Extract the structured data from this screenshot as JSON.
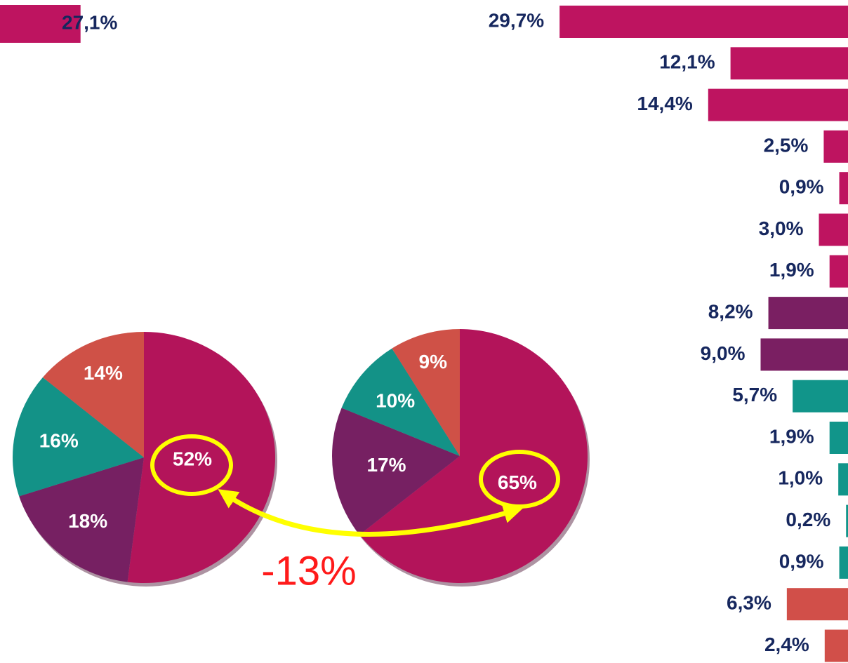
{
  "chart_data": [
    {
      "type": "bar",
      "orientation": "horizontal",
      "values": [
        27.1
      ],
      "value_labels": [
        "27,1%"
      ],
      "color": "#be1460",
      "xlim": [
        0,
        30
      ]
    },
    {
      "type": "bar",
      "orientation": "horizontal",
      "values": [
        29.7,
        12.1,
        14.4,
        2.5,
        0.9,
        3.0,
        1.9,
        8.2,
        9.0,
        5.7,
        1.9,
        1.0,
        0.2,
        0.9,
        6.3,
        2.4
      ],
      "value_labels": [
        "29,7%",
        "12,1%",
        "14,4%",
        "2,5%",
        "0,9%",
        "3,0%",
        "1,9%",
        "8,2%",
        "9,0%",
        "5,7%",
        "1,9%",
        "1,0%",
        "0,2%",
        "0,9%",
        "6,3%",
        "2,4%"
      ],
      "colors": [
        "#be1460",
        "#be1460",
        "#be1460",
        "#be1460",
        "#be1460",
        "#be1460",
        "#be1460",
        "#7a1f62",
        "#7a1f62",
        "#11958a",
        "#11958a",
        "#11958a",
        "#11958a",
        "#11958a",
        "#d14f49",
        "#d14f49"
      ],
      "xlim": [
        0,
        30
      ]
    },
    {
      "type": "pie",
      "values": [
        52,
        18,
        16,
        14
      ],
      "value_labels": [
        "52%",
        "18%",
        "16%",
        "14%"
      ],
      "colors": [
        "#b3145a",
        "#762062",
        "#139287",
        "#cf5147"
      ]
    },
    {
      "type": "pie",
      "values": [
        65,
        17,
        10,
        9
      ],
      "value_labels": [
        "65%",
        "17%",
        "10%",
        "9%"
      ],
      "colors": [
        "#b3145a",
        "#762062",
        "#139287",
        "#cf5147"
      ]
    }
  ],
  "annotation": "-13%"
}
